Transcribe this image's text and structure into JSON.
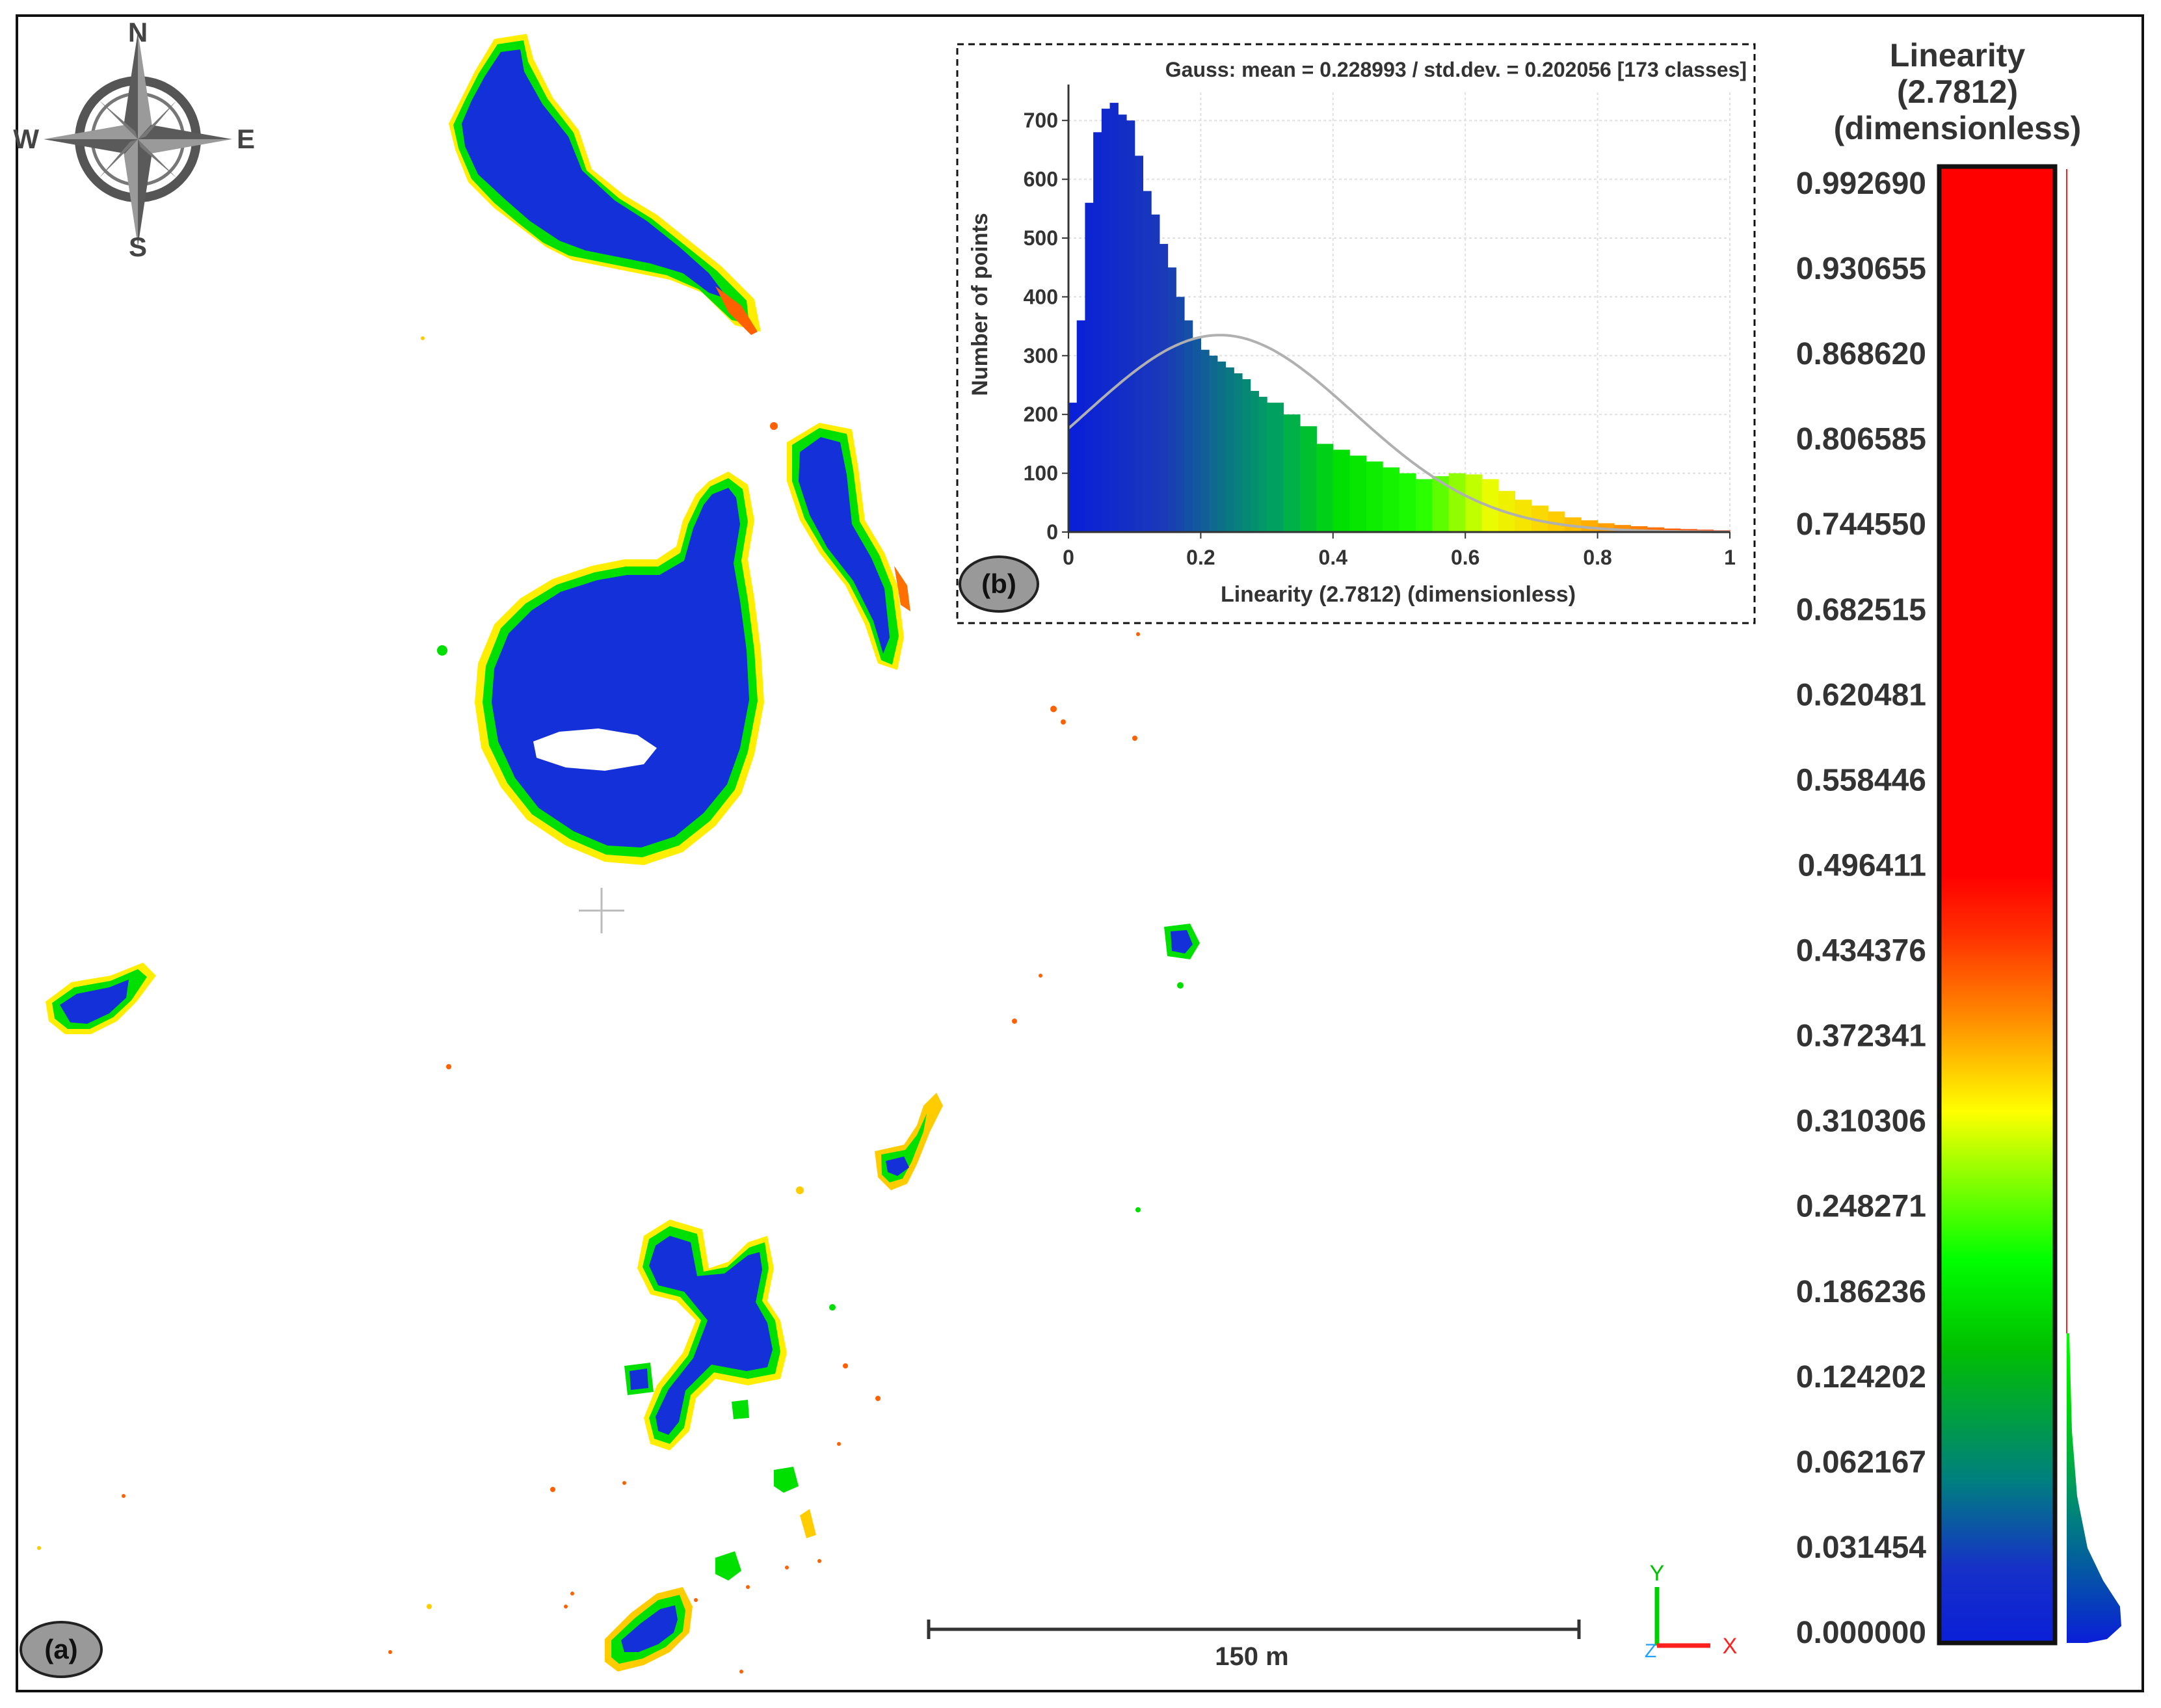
{
  "compass": {
    "north": "N",
    "south": "S",
    "east": "E",
    "west": "W"
  },
  "panel_a_label": "(a)",
  "panel_b_label": "(b)",
  "scale_bar": {
    "label": "150 m"
  },
  "axes_gizmo": {
    "y": "Y",
    "x": "X",
    "z": "Z"
  },
  "colorbar": {
    "title_lines": [
      "Linearity",
      "(2.7812)",
      "(dimensionless)"
    ],
    "ticks": [
      "0.992690",
      "0.930655",
      "0.868620",
      "0.806585",
      "0.744550",
      "0.682515",
      "0.620481",
      "0.558446",
      "0.496411",
      "0.434376",
      "0.372341",
      "0.310306",
      "0.248271",
      "0.186236",
      "0.124202",
      "0.062167",
      "0.031454",
      "0.000000"
    ],
    "colors": {
      "low": "#0a1fd8",
      "teal": "#007f7f",
      "green": "#00e000",
      "yellow": "#ffff00",
      "orange": "#ff8000",
      "high": "#ff0000"
    }
  },
  "chart_data": {
    "type": "bar",
    "title": "Gauss: mean = 0.228993 / std.dev. = 0.202056 [173 classes]",
    "xlabel": "Linearity (2.7812) (dimensionless)",
    "ylabel": "Number of points",
    "xlim": [
      0,
      1
    ],
    "ylim": [
      0,
      750
    ],
    "xticks": [
      "0",
      "0.2",
      "0.4",
      "0.6",
      "0.8",
      "1"
    ],
    "yticks": [
      "0",
      "100",
      "200",
      "300",
      "400",
      "500",
      "600",
      "700"
    ],
    "grid": true,
    "gauss": {
      "mean": 0.228993,
      "std": 0.202056,
      "peak": 335
    },
    "x": [
      0.0,
      0.0125,
      0.025,
      0.0375,
      0.05,
      0.0625,
      0.075,
      0.0875,
      0.1,
      0.1125,
      0.125,
      0.1375,
      0.15,
      0.1625,
      0.175,
      0.1875,
      0.2,
      0.2125,
      0.225,
      0.2375,
      0.25,
      0.2625,
      0.275,
      0.2875,
      0.3,
      0.325,
      0.35,
      0.375,
      0.4,
      0.425,
      0.45,
      0.475,
      0.5,
      0.525,
      0.55,
      0.575,
      0.6,
      0.625,
      0.65,
      0.675,
      0.7,
      0.725,
      0.75,
      0.775,
      0.8,
      0.825,
      0.85,
      0.875,
      0.9,
      0.925,
      0.95,
      0.975
    ],
    "values": [
      220,
      360,
      560,
      680,
      720,
      730,
      710,
      700,
      640,
      580,
      540,
      490,
      450,
      400,
      360,
      330,
      310,
      300,
      290,
      280,
      270,
      260,
      240,
      230,
      220,
      200,
      180,
      150,
      140,
      130,
      120,
      110,
      100,
      90,
      95,
      100,
      98,
      90,
      70,
      55,
      45,
      35,
      25,
      20,
      15,
      12,
      10,
      8,
      6,
      5,
      4,
      3
    ]
  }
}
